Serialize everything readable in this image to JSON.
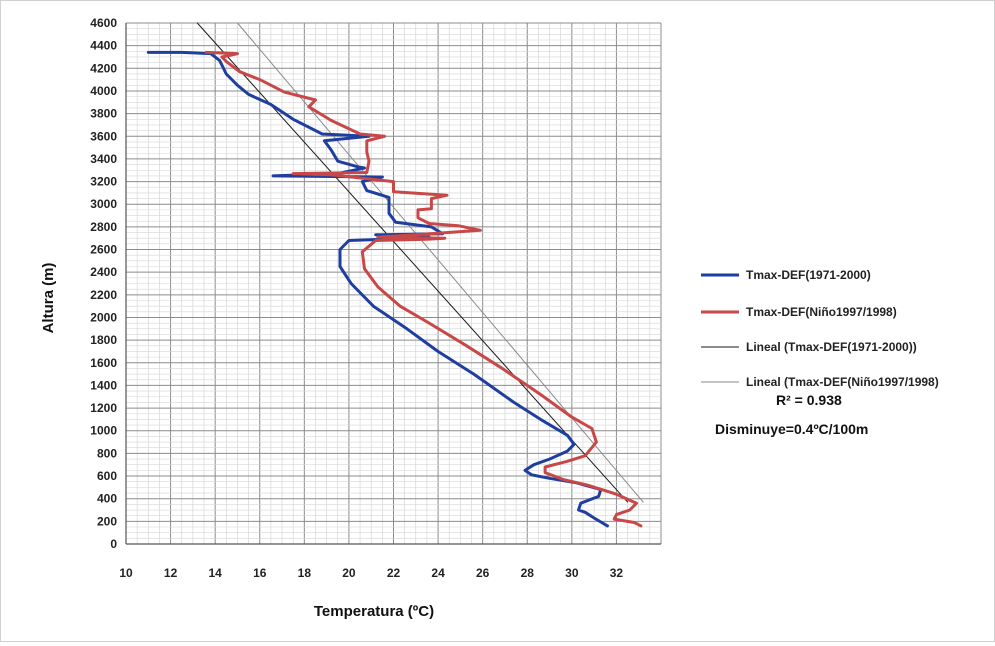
{
  "chart_data": {
    "type": "line",
    "xlabel": "Temperatura (ºC)",
    "ylabel": "Altura (m)",
    "xlim": [
      10,
      34
    ],
    "ylim": [
      0,
      4600
    ],
    "x_ticks": [
      "10",
      "12",
      "14",
      "16",
      "18",
      "20",
      "22",
      "24",
      "26",
      "28",
      "30",
      "32"
    ],
    "y_ticks": [
      "0",
      "200",
      "400",
      "600",
      "800",
      "1000",
      "1200",
      "1400",
      "1600",
      "1800",
      "2000",
      "2200",
      "2400",
      "2600",
      "2800",
      "3000",
      "3200",
      "3400",
      "3600",
      "3800",
      "4000",
      "4200",
      "4400",
      "4600"
    ],
    "grid": true,
    "legend_position": "right",
    "series": [
      {
        "name": "Tmax-DEF(1971-2000)",
        "color": "#1f3fa0",
        "points": [
          [
            31.6,
            160
          ],
          [
            31.0,
            230
          ],
          [
            30.6,
            280
          ],
          [
            30.3,
            300
          ],
          [
            30.4,
            360
          ],
          [
            31.2,
            420
          ],
          [
            31.3,
            480
          ],
          [
            30.2,
            540
          ],
          [
            29.0,
            580
          ],
          [
            28.2,
            610
          ],
          [
            27.9,
            650
          ],
          [
            28.3,
            700
          ],
          [
            29.0,
            750
          ],
          [
            29.8,
            820
          ],
          [
            30.1,
            880
          ],
          [
            29.8,
            960
          ],
          [
            28.6,
            1100
          ],
          [
            27.4,
            1250
          ],
          [
            25.6,
            1500
          ],
          [
            24.0,
            1700
          ],
          [
            22.6,
            1900
          ],
          [
            21.1,
            2100
          ],
          [
            20.1,
            2300
          ],
          [
            19.6,
            2450
          ],
          [
            19.6,
            2600
          ],
          [
            20.0,
            2680
          ],
          [
            21.5,
            2690
          ],
          [
            22.6,
            2700
          ],
          [
            23.6,
            2710
          ],
          [
            21.6,
            2720
          ],
          [
            21.2,
            2730
          ],
          [
            24.2,
            2740
          ],
          [
            23.7,
            2800
          ],
          [
            22.1,
            2840
          ],
          [
            21.8,
            2920
          ],
          [
            21.8,
            3060
          ],
          [
            20.8,
            3120
          ],
          [
            20.6,
            3200
          ],
          [
            21.5,
            3240
          ],
          [
            16.6,
            3250
          ],
          [
            19.5,
            3270
          ],
          [
            20.7,
            3320
          ],
          [
            20.4,
            3330
          ],
          [
            19.5,
            3380
          ],
          [
            19.2,
            3480
          ],
          [
            18.9,
            3560
          ],
          [
            20.9,
            3600
          ],
          [
            18.8,
            3620
          ],
          [
            17.5,
            3750
          ],
          [
            16.5,
            3880
          ],
          [
            15.5,
            3970
          ],
          [
            15.0,
            4050
          ],
          [
            14.5,
            4150
          ],
          [
            14.2,
            4270
          ],
          [
            13.8,
            4330
          ],
          [
            12.5,
            4340
          ],
          [
            11.0,
            4340
          ]
        ]
      },
      {
        "name": "Tmax-DEF(Niño1997/1998)",
        "color": "#c84848",
        "points": [
          [
            33.1,
            160
          ],
          [
            32.8,
            190
          ],
          [
            31.9,
            220
          ],
          [
            32.0,
            260
          ],
          [
            32.6,
            300
          ],
          [
            32.9,
            360
          ],
          [
            32.0,
            440
          ],
          [
            30.7,
            520
          ],
          [
            29.6,
            570
          ],
          [
            28.8,
            630
          ],
          [
            28.8,
            680
          ],
          [
            29.8,
            730
          ],
          [
            30.6,
            780
          ],
          [
            31.1,
            900
          ],
          [
            30.9,
            1020
          ],
          [
            30.0,
            1120
          ],
          [
            28.6,
            1320
          ],
          [
            26.8,
            1560
          ],
          [
            25.2,
            1760
          ],
          [
            23.6,
            1950
          ],
          [
            22.3,
            2100
          ],
          [
            21.3,
            2270
          ],
          [
            20.7,
            2430
          ],
          [
            20.6,
            2580
          ],
          [
            21.2,
            2680
          ],
          [
            23.5,
            2690
          ],
          [
            24.3,
            2700
          ],
          [
            21.3,
            2710
          ],
          [
            23.0,
            2730
          ],
          [
            25.9,
            2770
          ],
          [
            24.9,
            2810
          ],
          [
            23.6,
            2830
          ],
          [
            23.1,
            2880
          ],
          [
            23.1,
            2950
          ],
          [
            23.7,
            2960
          ],
          [
            23.7,
            3050
          ],
          [
            24.4,
            3080
          ],
          [
            22.0,
            3110
          ],
          [
            22.0,
            3200
          ],
          [
            19.2,
            3260
          ],
          [
            17.5,
            3270
          ],
          [
            20.8,
            3280
          ],
          [
            20.9,
            3380
          ],
          [
            20.8,
            3460
          ],
          [
            20.8,
            3560
          ],
          [
            21.6,
            3600
          ],
          [
            20.5,
            3620
          ],
          [
            19.2,
            3740
          ],
          [
            18.2,
            3860
          ],
          [
            18.5,
            3920
          ],
          [
            17.1,
            3990
          ],
          [
            16.0,
            4100
          ],
          [
            15.1,
            4170
          ],
          [
            14.5,
            4260
          ],
          [
            14.3,
            4300
          ],
          [
            15.0,
            4330
          ],
          [
            13.6,
            4340
          ]
        ]
      },
      {
        "name": "Lineal (Tmax-DEF(1971-2000))",
        "color": "#1a1a1a",
        "points": [
          [
            13.2,
            4600
          ],
          [
            32.5,
            370
          ]
        ]
      },
      {
        "name": "Lineal (Tmax-DEF(Niño1997/1998)",
        "color": "#8a8a8a",
        "points": [
          [
            15.0,
            4600
          ],
          [
            33.2,
            370
          ]
        ]
      }
    ],
    "annotations": {
      "r2": "R² = 0.938",
      "decrease": "Disminuye=0.4ºC/100m"
    }
  }
}
